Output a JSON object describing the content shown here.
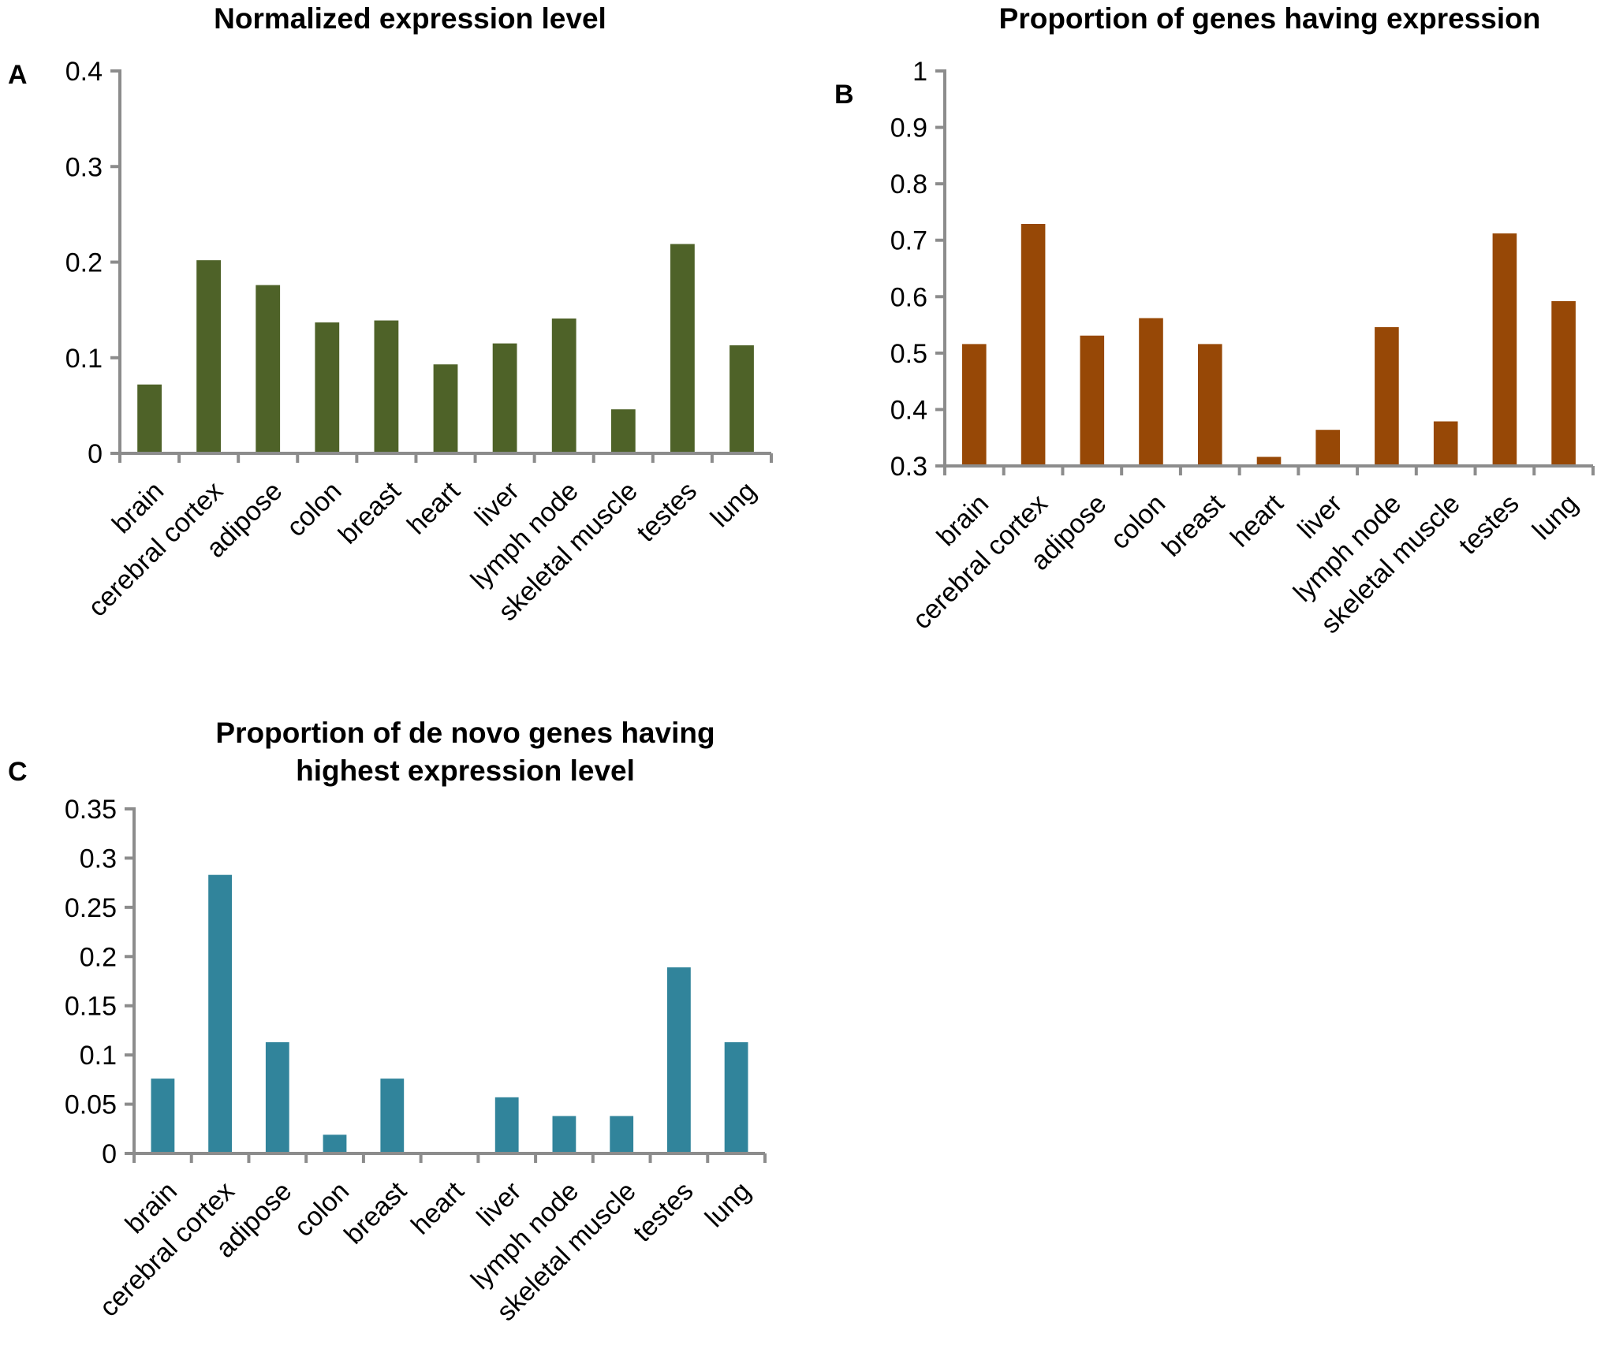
{
  "chart_data": [
    {
      "panel": "A",
      "type": "bar",
      "title": "Normalized expression level",
      "categories": [
        "brain",
        "cerebral cortex",
        "adipose",
        "colon",
        "breast",
        "heart",
        "liver",
        "lymph node",
        "skeletal muscle",
        "testes",
        "lung"
      ],
      "values": [
        0.072,
        0.202,
        0.176,
        0.137,
        0.139,
        0.093,
        0.115,
        0.141,
        0.046,
        0.219,
        0.113
      ],
      "ylim": [
        0,
        0.4
      ],
      "yticks": [
        "0",
        "0.1",
        "0.2",
        "0.3",
        "0.4"
      ],
      "ytick_values": [
        0,
        0.1,
        0.2,
        0.3,
        0.4
      ],
      "color": "#4e6228",
      "grid": false
    },
    {
      "panel": "B",
      "type": "bar",
      "title": "Proportion of genes having expression",
      "categories": [
        "brain",
        "cerebral cortex",
        "adipose",
        "colon",
        "breast",
        "heart",
        "liver",
        "lymph node",
        "skeletal muscle",
        "testes",
        "lung"
      ],
      "values": [
        0.516,
        0.729,
        0.531,
        0.562,
        0.516,
        0.316,
        0.364,
        0.546,
        0.379,
        0.712,
        0.592
      ],
      "ylim": [
        0.3,
        1
      ],
      "yticks": [
        "0.3",
        "0.4",
        "0.5",
        "0.6",
        "0.7",
        "0.8",
        "0.9",
        "1"
      ],
      "ytick_values": [
        0.3,
        0.4,
        0.5,
        0.6,
        0.7,
        0.8,
        0.9,
        1
      ],
      "color": "#974806",
      "grid": false
    },
    {
      "panel": "C",
      "type": "bar",
      "title_lines": [
        "Proportion of de novo genes having",
        "highest expression level"
      ],
      "categories": [
        "brain",
        "cerebral cortex",
        "adipose",
        "colon",
        "breast",
        "heart",
        "liver",
        "lymph node",
        "skeletal muscle",
        "testes",
        "lung"
      ],
      "values": [
        0.076,
        0.283,
        0.113,
        0.019,
        0.076,
        0,
        0.057,
        0.038,
        0.038,
        0.189,
        0.113
      ],
      "ylim": [
        0,
        0.35
      ],
      "yticks": [
        "0",
        "0.05",
        "0.1",
        "0.15",
        "0.2",
        "0.25",
        "0.3",
        "0.35"
      ],
      "ytick_values": [
        0,
        0.05,
        0.1,
        0.15,
        0.2,
        0.25,
        0.3,
        0.35
      ],
      "color": "#31849b",
      "grid": false
    }
  ]
}
